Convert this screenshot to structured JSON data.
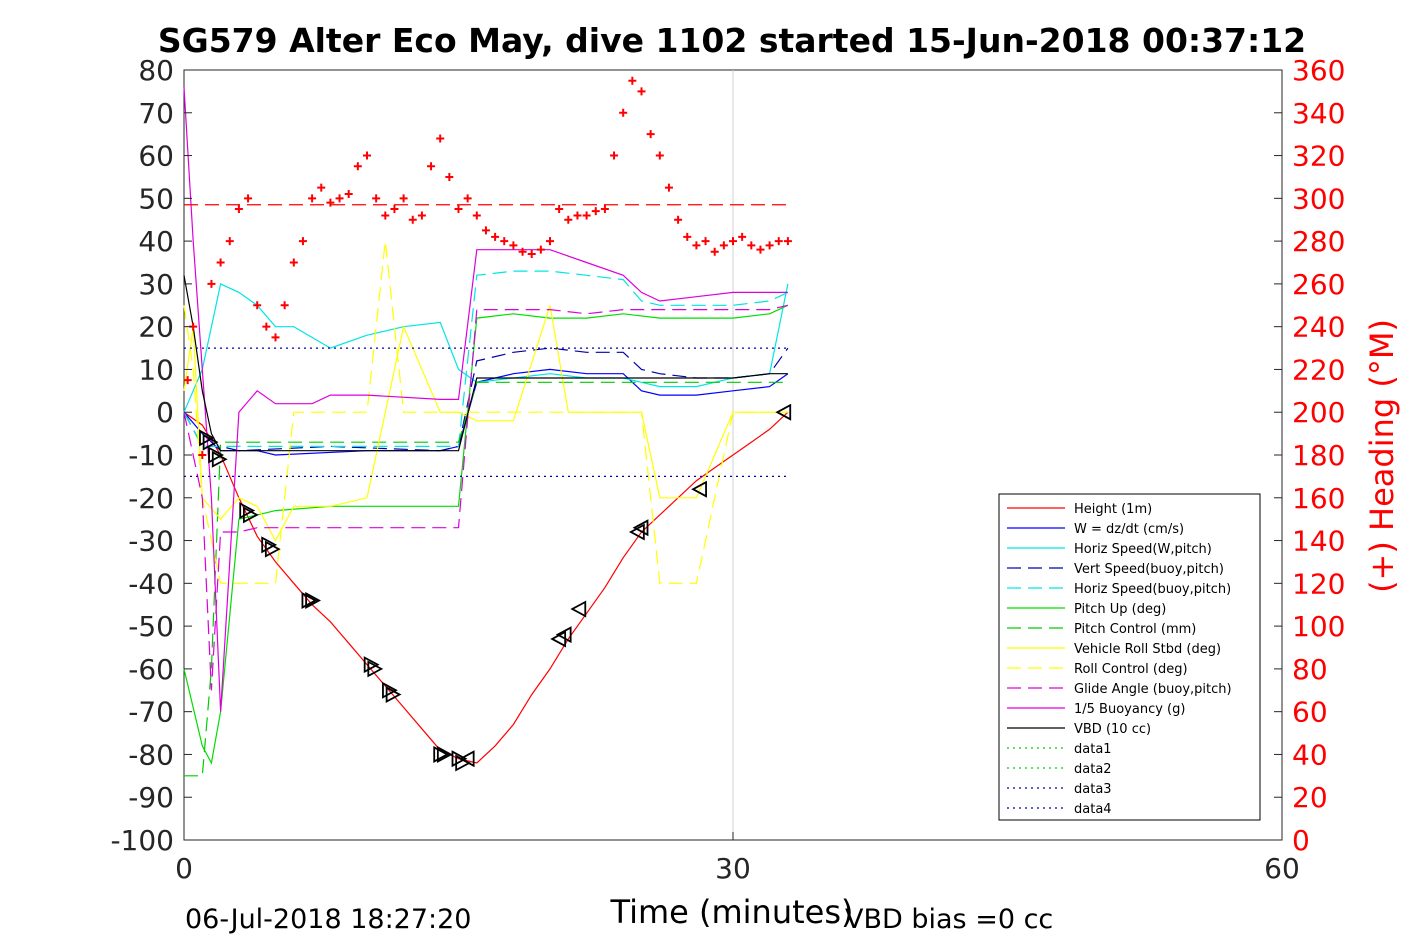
{
  "figure": {
    "title": "SG579 Alter Eco May, dive 1102 started 15-Jun-2018 00:37:12",
    "footer_date": "06-Jul-2018 18:27:20",
    "footer_bias": "VBD bias =0 cc"
  },
  "chart_data": {
    "type": "line",
    "title": "SG579 Alter Eco May, dive 1102 started 15-Jun-2018 00:37:12",
    "xlabel": "Time (minutes)",
    "ylabel": "",
    "ylabel_right": "(+) Heading (°M)",
    "xlim": [
      0,
      60
    ],
    "ylim": [
      -100,
      80
    ],
    "ylim_right": [
      0,
      360
    ],
    "x_ticks": [
      0,
      30,
      60
    ],
    "y_ticks": [
      80,
      70,
      60,
      50,
      40,
      30,
      20,
      10,
      0,
      -10,
      -20,
      -30,
      -40,
      -50,
      -60,
      -70,
      -80,
      -90,
      -100
    ],
    "y_ticks_right": [
      360,
      340,
      320,
      300,
      280,
      260,
      240,
      220,
      200,
      180,
      160,
      140,
      120,
      100,
      80,
      60,
      40,
      20,
      0
    ],
    "grid": "x only at 30",
    "legend_position": "bottom-right",
    "colors": {
      "heading": "#ff0000",
      "right_axis": "#ff0000"
    },
    "series": [
      {
        "name": "Height (1m)",
        "color": "#ff0000",
        "style": "solid",
        "x": [
          0,
          1,
          2,
          3,
          4,
          5,
          6,
          7,
          8,
          9,
          10,
          11,
          12,
          13,
          14,
          15,
          16,
          17,
          18,
          19,
          20,
          21,
          22,
          23,
          24,
          25,
          26,
          27,
          28,
          29,
          30,
          31,
          32,
          33
        ],
        "y": [
          0,
          -3,
          -10,
          -20,
          -29,
          -35,
          -40,
          -45,
          -49,
          -54,
          -59,
          -64,
          -69,
          -74,
          -79,
          -81,
          -82,
          -78,
          -73,
          -66,
          -60,
          -53,
          -47,
          -41,
          -34,
          -28,
          -24,
          -20,
          -16,
          -13,
          -10,
          -7,
          -4,
          0
        ]
      },
      {
        "name": "W = dz/dt (cm/s)",
        "color": "#0000ff",
        "style": "solid",
        "x": [
          0,
          1,
          2,
          3,
          4,
          5,
          10,
          14,
          15,
          16,
          18,
          20,
          22,
          24,
          25,
          26,
          28,
          30,
          32,
          33
        ],
        "y": [
          0,
          -5,
          -9,
          -9,
          -9,
          -10,
          -9,
          -9,
          -8,
          7,
          9,
          10,
          9,
          9,
          5,
          4,
          4,
          5,
          6,
          9
        ]
      },
      {
        "name": "Horiz Speed(W,pitch)",
        "color": "#00e5e5",
        "style": "solid",
        "x": [
          0,
          1,
          2,
          3,
          4,
          5,
          6,
          8,
          10,
          12,
          14,
          15,
          16,
          18,
          20,
          22,
          24,
          25,
          26,
          28,
          30,
          32,
          33
        ],
        "y": [
          0,
          10,
          30,
          28,
          25,
          20,
          20,
          15,
          18,
          20,
          21,
          10,
          7,
          8,
          9,
          8,
          8,
          7,
          6,
          6,
          8,
          9,
          30
        ]
      },
      {
        "name": "Vert Speed(buoy,pitch)",
        "color": "#0000aa",
        "style": "dashed",
        "x": [
          0,
          1,
          2,
          3,
          8,
          14,
          15,
          16,
          18,
          20,
          22,
          24,
          25,
          26,
          28,
          30,
          32,
          33
        ],
        "y": [
          0,
          -8,
          -8,
          -9,
          -8,
          -9,
          -8,
          12,
          14,
          15,
          14,
          14,
          10,
          9,
          8,
          8,
          9,
          15
        ]
      },
      {
        "name": "Horiz Speed(buoy,pitch)",
        "color": "#00e5e5",
        "style": "dashed",
        "x": [
          0,
          1,
          2,
          3,
          14,
          15,
          16,
          18,
          20,
          22,
          24,
          25,
          26,
          28,
          30,
          32,
          33
        ],
        "y": [
          0,
          -8,
          -8,
          -8,
          -8,
          -8,
          32,
          33,
          33,
          32,
          31,
          26,
          25,
          25,
          25,
          26,
          28
        ]
      },
      {
        "name": "Pitch Up (deg)",
        "color": "#00dd00",
        "style": "solid",
        "x": [
          0,
          1,
          1.5,
          2,
          3,
          4,
          5,
          8,
          12,
          14,
          15,
          16,
          18,
          20,
          22,
          24,
          26,
          28,
          30,
          32,
          33
        ],
        "y": [
          -60,
          -78,
          -82,
          -70,
          -25,
          -24,
          -23,
          -22,
          -22,
          -22,
          -22,
          22,
          23,
          22,
          22,
          23,
          22,
          22,
          22,
          23,
          25
        ]
      },
      {
        "name": "Pitch Control (mm)",
        "color": "#00cc00",
        "style": "dashed",
        "x": [
          0,
          0.5,
          1,
          1.5,
          2,
          3,
          14,
          15,
          16,
          18,
          20,
          22,
          24,
          26,
          28,
          30,
          32,
          33
        ],
        "y": [
          -85,
          -85,
          -85,
          -60,
          -7,
          -7,
          -7,
          -7,
          7,
          7,
          7,
          7,
          7,
          7,
          7,
          7,
          7,
          7
        ]
      },
      {
        "name": "Vehicle Roll Stbd (deg)",
        "color": "#ffff00",
        "style": "solid",
        "x": [
          0,
          0.5,
          1,
          2,
          3,
          4,
          5,
          6,
          8,
          10,
          12,
          14,
          15,
          16,
          18,
          20,
          21,
          22,
          24,
          25,
          26,
          28,
          30,
          32,
          33
        ],
        "y": [
          5,
          20,
          -20,
          -25,
          -20,
          -22,
          -30,
          -22,
          -22,
          -20,
          20,
          0,
          0,
          -2,
          -2,
          25,
          0,
          0,
          0,
          0,
          -20,
          -20,
          0,
          0,
          0
        ]
      },
      {
        "name": "Roll Control (deg)",
        "color": "#ffff00",
        "style": "dashed",
        "x": [
          0,
          0.5,
          1,
          2,
          3,
          4,
          5,
          6,
          8,
          10,
          11,
          12,
          14,
          15,
          16,
          18,
          20,
          21,
          22,
          24,
          25,
          26,
          28,
          30,
          32,
          33
        ],
        "y": [
          25,
          10,
          -20,
          -40,
          -40,
          -40,
          -40,
          0,
          0,
          0,
          40,
          0,
          0,
          0,
          0,
          0,
          0,
          0,
          0,
          0,
          0,
          -40,
          -40,
          0,
          0,
          0
        ]
      },
      {
        "name": "Glide Angle (buoy,pitch)",
        "color": "#dd00dd",
        "style": "dashed",
        "x": [
          0,
          1,
          1.5,
          2,
          3,
          4,
          14,
          15,
          16,
          18,
          20,
          22,
          24,
          26,
          28,
          30,
          32,
          33
        ],
        "y": [
          0,
          -20,
          -65,
          -28,
          -28,
          -27,
          -27,
          -27,
          24,
          24,
          24,
          23,
          24,
          24,
          24,
          24,
          24,
          25
        ]
      },
      {
        "name": "1/5 Buoyancy (g)",
        "color": "#dd00dd",
        "style": "solid",
        "x": [
          0,
          0.5,
          1,
          1.5,
          2,
          3,
          4,
          5,
          7,
          8,
          10,
          14,
          15,
          16,
          18,
          20,
          22,
          24,
          25,
          26,
          28,
          30,
          32,
          33
        ],
        "y": [
          76,
          40,
          10,
          -20,
          -70,
          0,
          5,
          2,
          2,
          4,
          4,
          3,
          3,
          38,
          38,
          38,
          35,
          32,
          28,
          26,
          27,
          28,
          28,
          28
        ]
      },
      {
        "name": "VBD (10 cc)",
        "color": "#000000",
        "style": "solid",
        "x": [
          0,
          0.5,
          1,
          1.5,
          2,
          3,
          6,
          10,
          14,
          15,
          16,
          18,
          20,
          22,
          24,
          26,
          28,
          30,
          32,
          33
        ],
        "y": [
          32,
          20,
          5,
          -5,
          -9,
          -9,
          -9,
          -9,
          -9,
          -9,
          8,
          8,
          8,
          8,
          8,
          8,
          8,
          8,
          9,
          9
        ]
      },
      {
        "name": "data1",
        "color": "#00cc00",
        "style": "dotted",
        "x": [],
        "y": []
      },
      {
        "name": "data2",
        "color": "#00cc00",
        "style": "dotted",
        "x": [],
        "y": []
      },
      {
        "name": "data3",
        "color": "#0000aa",
        "style": "dotted",
        "x": [
          0,
          33
        ],
        "y": [
          -15,
          -15
        ]
      },
      {
        "name": "data4",
        "color": "#0000aa",
        "style": "dotted",
        "x": [
          0,
          33
        ],
        "y": [
          15,
          15
        ]
      }
    ],
    "heading_series": {
      "color": "#ff0000",
      "axis": "right",
      "mean_heading": 297,
      "x": [
        0.2,
        0.5,
        1,
        1.5,
        2,
        2.5,
        3,
        3.5,
        4,
        4.5,
        5,
        5.5,
        6,
        6.5,
        7,
        7.5,
        8,
        8.5,
        9,
        9.5,
        10,
        10.5,
        11,
        11.5,
        12,
        12.5,
        13,
        13.5,
        14,
        14.5,
        15,
        15.5,
        16,
        16.5,
        17,
        17.5,
        18,
        18.5,
        19,
        19.5,
        20,
        20.5,
        21,
        21.5,
        22,
        22.5,
        23,
        23.5,
        24,
        24.5,
        25,
        25.5,
        26,
        26.5,
        27,
        27.5,
        28,
        28.5,
        29,
        29.5,
        30,
        30.5,
        31,
        31.5,
        32,
        32.5,
        33
      ],
      "y": [
        215,
        240,
        180,
        260,
        270,
        280,
        295,
        300,
        250,
        240,
        235,
        250,
        270,
        280,
        300,
        305,
        298,
        300,
        302,
        315,
        320,
        300,
        292,
        295,
        300,
        290,
        292,
        315,
        328,
        310,
        295,
        300,
        292,
        285,
        282,
        280,
        278,
        275,
        274,
        276,
        280,
        295,
        290,
        292,
        292,
        294,
        295,
        320,
        340,
        355,
        350,
        330,
        320,
        305,
        290,
        282,
        278,
        280,
        275,
        278,
        280,
        282,
        278,
        276,
        278,
        280,
        280
      ]
    },
    "markers_down": {
      "x": [
        1.2,
        1.4,
        1.7,
        1.9,
        3.4,
        3.6,
        4.6,
        4.8,
        6.8,
        7.0,
        10.2,
        10.4,
        11.2,
        11.4,
        14.0,
        14.2,
        15.0,
        15.2
      ],
      "y": [
        -6,
        -7,
        -10,
        -11,
        -23,
        -24,
        -31,
        -32,
        -44,
        -44,
        -59,
        -60,
        -65,
        -66,
        -80,
        -80,
        -81,
        -82
      ]
    },
    "markers_up": {
      "x": [
        15.5,
        20.5,
        20.8,
        21.6,
        24.8,
        25.0,
        28.2,
        32.8
      ],
      "y": [
        -81,
        -53,
        -52,
        -46,
        -28,
        -27,
        -18,
        0
      ]
    }
  }
}
